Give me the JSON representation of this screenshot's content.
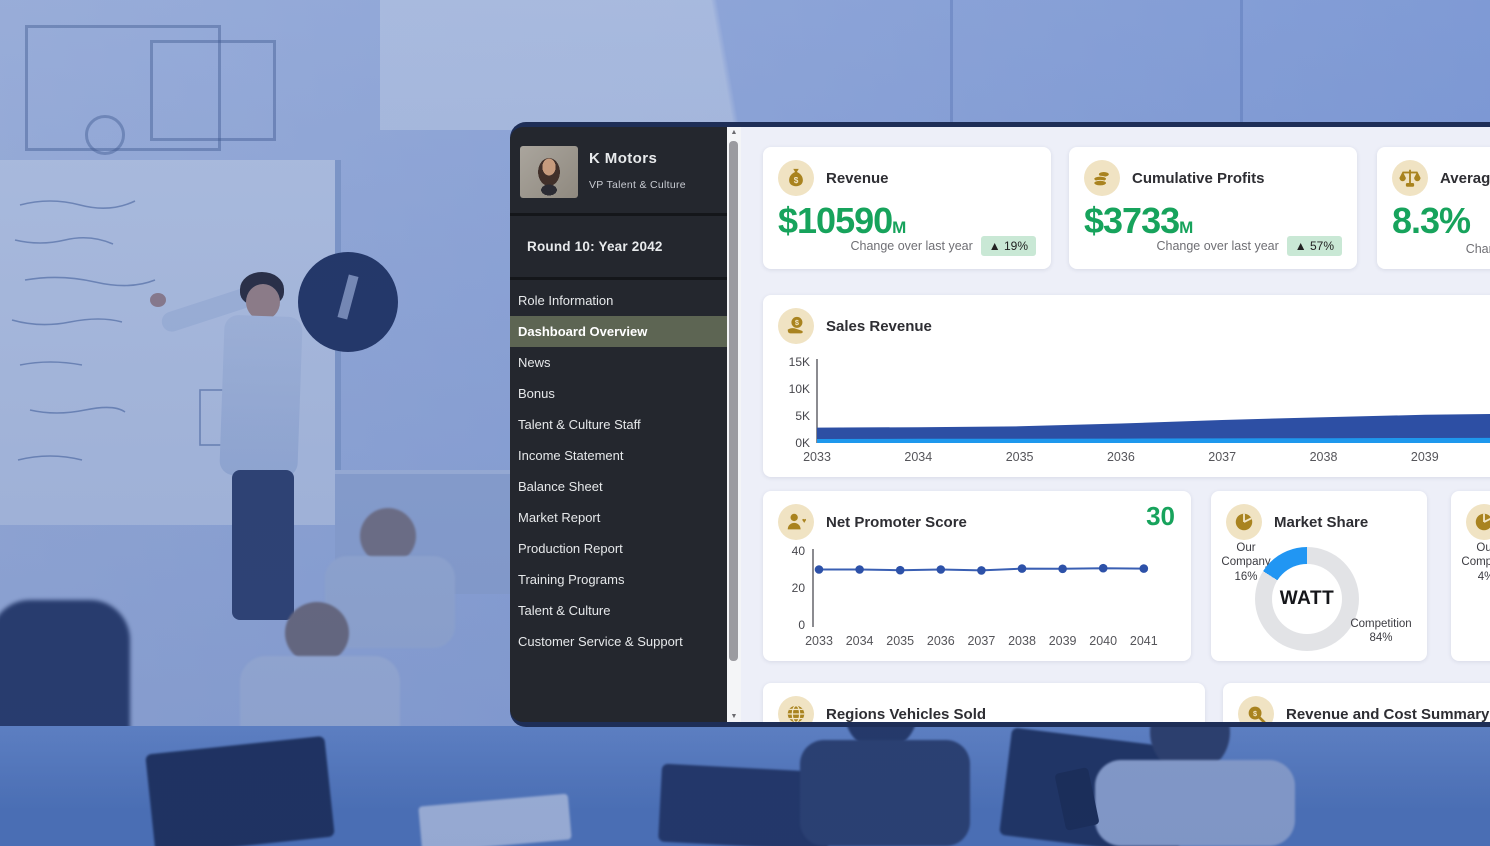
{
  "profile": {
    "company": "K Motors",
    "role": "VP Talent & Culture"
  },
  "round_banner": "Round 10: Year 2042",
  "sidebar": {
    "items": [
      {
        "label": "Role Information",
        "selected": false
      },
      {
        "label": "Dashboard Overview",
        "selected": true
      },
      {
        "label": "News",
        "selected": false
      },
      {
        "label": "Bonus",
        "selected": false
      },
      {
        "label": "Talent & Culture Staff",
        "selected": false
      },
      {
        "label": "Income Statement",
        "selected": false
      },
      {
        "label": "Balance Sheet",
        "selected": false
      },
      {
        "label": "Market Report",
        "selected": false
      },
      {
        "label": "Production Report",
        "selected": false
      },
      {
        "label": "Training Programs",
        "selected": false
      },
      {
        "label": "Talent & Culture",
        "selected": false
      },
      {
        "label": "Customer Service & Support",
        "selected": false
      }
    ]
  },
  "kpis": [
    {
      "title": "Revenue",
      "value": "$10590",
      "suffix": "M",
      "change_label": "Change over last year",
      "change_badge": "▲ 19%",
      "icon": "money-bag-icon",
      "value_color": "#17a35c"
    },
    {
      "title": "Cumulative Profits",
      "value": "$3733",
      "suffix": "M",
      "change_label": "Change over last year",
      "change_badge": "▲ 57%",
      "icon": "coins-icon",
      "value_color": "#17a35c"
    },
    {
      "title": "Average P",
      "value": "8.3%",
      "suffix": "",
      "change_label": "Change over last year",
      "change_badge": "",
      "icon": "scales-icon",
      "value_color": "#17a35c"
    }
  ],
  "cards": {
    "sales": {
      "title": "Sales Revenue"
    },
    "nps": {
      "title": "Net Promoter Score",
      "current": "30"
    },
    "market_share": {
      "title": "Market Share",
      "center": "WATT",
      "slice1_label": "Our Company",
      "slice1_pct": "16%",
      "slice2_label": "Competition",
      "slice2_pct": "84%"
    },
    "market_share_partial": {
      "slice1_label": "Our Company",
      "slice1_pct": "4%"
    },
    "regions": {
      "title": "Regions Vehicles Sold"
    },
    "revcost": {
      "title": "Revenue and Cost Summary"
    }
  },
  "chart_data": [
    {
      "id": "sales_revenue",
      "type": "area",
      "stacked": true,
      "title": "Sales Revenue",
      "x": [
        2033,
        2034,
        2035,
        2036,
        2037,
        2038,
        2039,
        2040,
        2041
      ],
      "series": [
        {
          "name": "light-blue-bottom",
          "color": "#1e98ed",
          "values": [
            750,
            780,
            800,
            820,
            850,
            880,
            920,
            960,
            1000
          ]
        },
        {
          "name": "dark-blue-top",
          "color": "#2d4fa4",
          "values": [
            2100,
            2150,
            2300,
            2800,
            3400,
            3900,
            4300,
            4500,
            4600
          ]
        }
      ],
      "ylim": [
        0,
        15000
      ],
      "yticks": [
        "0K",
        "5K",
        "10K",
        "15K"
      ],
      "visible_xticks": [
        2033,
        2034,
        2035,
        2036,
        2037,
        2038,
        2039
      ],
      "legend": "none",
      "grid": false
    },
    {
      "id": "nps",
      "type": "line",
      "title": "Net Promoter Score",
      "x": [
        2033,
        2034,
        2035,
        2036,
        2037,
        2038,
        2039,
        2040,
        2041
      ],
      "values": [
        30,
        30,
        29.6,
        30,
        29.5,
        30.5,
        30.4,
        30.7,
        30.5
      ],
      "current": 30,
      "ylim": [
        0,
        40
      ],
      "yticks": [
        0,
        20,
        40
      ],
      "color": "#3a5fb3",
      "dot_color": "#2d51a8",
      "legend": "none",
      "grid": false
    },
    {
      "id": "market_share",
      "type": "pie",
      "title": "Market Share",
      "center_label": "WATT",
      "slices": [
        {
          "label": "Our Company",
          "value": 16,
          "color": "#2196f3"
        },
        {
          "label": "Competition",
          "value": 84,
          "color": "#e2e3e6"
        }
      ]
    }
  ],
  "colors": {
    "accent_green": "#17a35c",
    "badge_bg": "#c9e8d5",
    "panel_navy": "#1e2e57",
    "sidebar_bg": "#24272e",
    "sidebar_selected": "#5d6553",
    "main_bg": "#edeff8",
    "icon_circle": "#f0e3c3",
    "icon_glyph": "#a9831f"
  }
}
